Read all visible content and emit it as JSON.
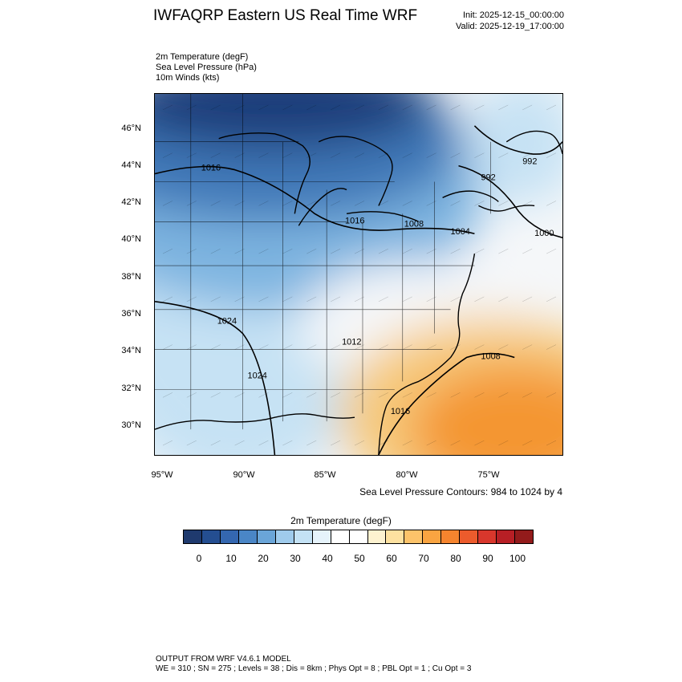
{
  "header": {
    "title": "IWFAQRP Eastern US Real Time WRF",
    "init": "Init: 2025-12-15_00:00:00",
    "valid": "Valid: 2025-12-19_17:00:00"
  },
  "fields": [
    "2m Temperature   (degF)",
    "Sea Level Pressure   (hPa)",
    "10m Winds   (kts)"
  ],
  "map": {
    "lat_labels": [
      "46°N",
      "44°N",
      "42°N",
      "40°N",
      "38°N",
      "36°N",
      "34°N",
      "32°N",
      "30°N"
    ],
    "lon_labels": [
      "95°W",
      "90°W",
      "85°W",
      "80°W",
      "75°W"
    ],
    "isobar_labels": [
      "1016",
      "992",
      "992",
      "1016",
      "1008",
      "1004",
      "1000",
      "1024",
      "1012",
      "1008",
      "1024",
      "1016"
    ],
    "colors": {
      "cold_core": "#1b3d7a",
      "cold": "#3f78b8",
      "cool": "#7db4e0",
      "mild": "#c6e2f4",
      "neutral": "#f5f7f9",
      "warm": "#f6c97a",
      "hot": "#f49633"
    }
  },
  "contour_note": "Sea Level Pressure Contours: 984 to 1024 by 4",
  "colorbar": {
    "title": "2m Temperature  (degF)",
    "ticks": [
      "0",
      "10",
      "20",
      "30",
      "40",
      "50",
      "60",
      "70",
      "80",
      "90",
      "100"
    ],
    "colors": [
      "#1f3a6e",
      "#244e91",
      "#3467b0",
      "#4a86c6",
      "#6aa5d8",
      "#9fcbec",
      "#c4e2f5",
      "#e6f3fb",
      "#ffffff",
      "#ffffff",
      "#fdf2d0",
      "#fde1a0",
      "#fcc36a",
      "#f9a441",
      "#f5842e",
      "#ec5b2c",
      "#d8372c",
      "#b71f25",
      "#931b1b"
    ]
  },
  "footer": {
    "line1": "OUTPUT FROM WRF V4.6.1 MODEL",
    "line2": "WE = 310 ; SN = 275 ; Levels = 38 ; Dis = 8km ; Phys Opt = 8 ; PBL Opt = 1 ; Cu Opt = 3"
  }
}
